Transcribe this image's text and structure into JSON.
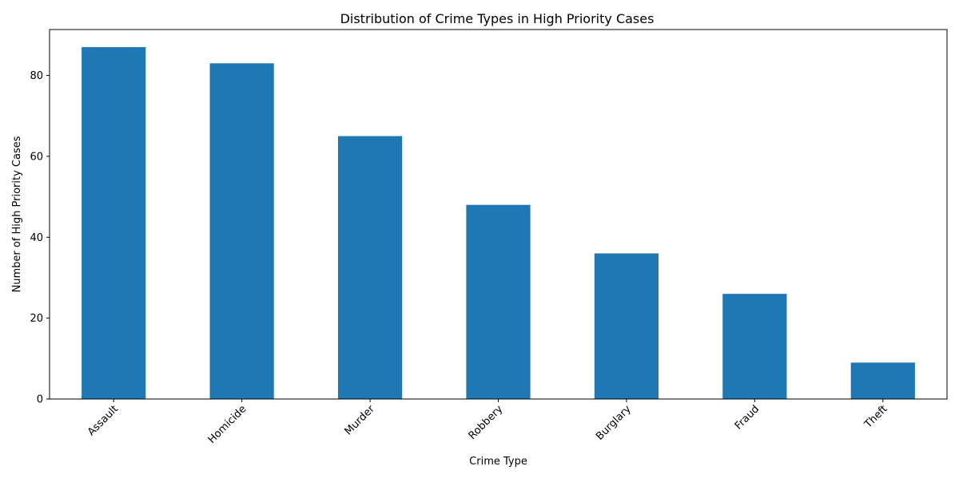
{
  "chart_data": {
    "type": "bar",
    "title": "Distribution of Crime Types in High Priority Cases",
    "xlabel": "Crime Type",
    "ylabel": "Number of High Priority Cases",
    "categories": [
      "Assault",
      "Homicide",
      "Murder",
      "Robbery",
      "Burglary",
      "Fraud",
      "Theft"
    ],
    "values": [
      87,
      83,
      65,
      48,
      36,
      26,
      9
    ],
    "ylim": [
      0,
      91.35
    ],
    "yticks": [
      0,
      20,
      40,
      60,
      80
    ],
    "ytick_labels": [
      "0",
      "20",
      "40",
      "60",
      "80"
    ],
    "xtick_rotation_deg": 45,
    "grid": false,
    "legend": "none",
    "bar_color": "#1f77b4"
  }
}
